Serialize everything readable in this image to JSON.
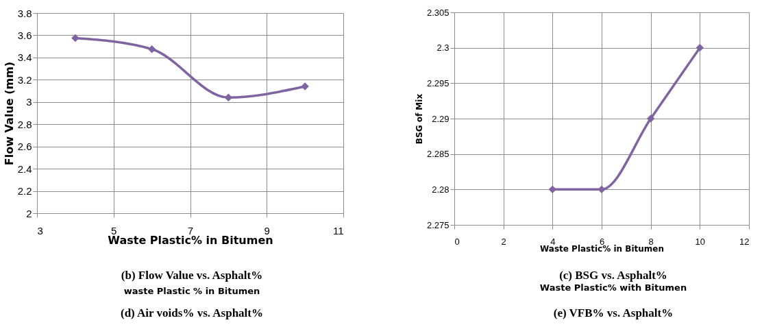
{
  "chart_data": [
    {
      "type": "line",
      "xlabel": "Waste Plastic% in Bitumen",
      "ylabel": "Flow Value (mm)",
      "x": [
        4,
        6,
        8,
        10
      ],
      "series": [
        {
          "color": "#8064a2",
          "values": [
            3.575,
            3.475,
            3.04,
            3.14
          ]
        }
      ],
      "xlim": [
        3,
        11
      ],
      "xticks": [
        3,
        5,
        7,
        9,
        11
      ],
      "ylim": [
        2,
        3.8
      ],
      "yticks": [
        2,
        2.2,
        2.4,
        2.6,
        2.8,
        3,
        3.2,
        3.4,
        3.6,
        3.8
      ],
      "grid": true,
      "marker": "diamond",
      "line_style": "solid",
      "annotations": [
        "(b) Flow Value vs. Asphalt%",
        "waste Plastic % in Bitumen",
        "(d) Air voids% vs. Asphalt%"
      ]
    },
    {
      "type": "line",
      "xlabel": "Waste Plastic% in Bitumen",
      "ylabel": "BSG of Mix",
      "x": [
        4,
        6,
        8,
        10
      ],
      "series": [
        {
          "color": "#8064a2",
          "values": [
            2.28,
            2.28,
            2.29,
            2.3
          ]
        }
      ],
      "xlim": [
        0,
        12
      ],
      "xticks": [
        0,
        2,
        4,
        6,
        8,
        10,
        12
      ],
      "ylim": [
        2.275,
        2.305
      ],
      "yticks": [
        2.275,
        2.28,
        2.285,
        2.29,
        2.295,
        2.3,
        2.305
      ],
      "grid": true,
      "marker": "diamond",
      "line_style": "solid",
      "annotations": [
        "(c) BSG vs. Asphalt%",
        "Waste Plastic% with Bitumen",
        "(e) VFB% vs. Asphalt%"
      ]
    }
  ]
}
